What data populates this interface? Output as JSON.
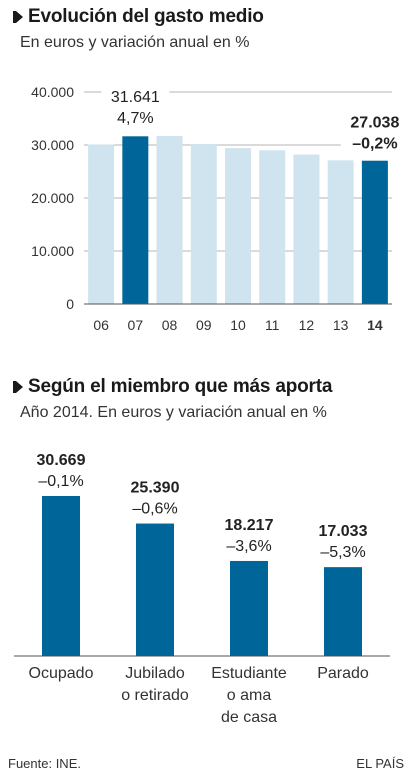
{
  "chart_data": [
    {
      "type": "bar",
      "title": "Evolución del gasto medio",
      "subtitle": "En euros y variación anual en %",
      "categories": [
        "06",
        "07",
        "08",
        "09",
        "10",
        "11",
        "12",
        "13",
        "14"
      ],
      "values": [
        30100,
        31641,
        31700,
        30200,
        29400,
        29000,
        28200,
        27100,
        27038
      ],
      "highlight": [
        false,
        true,
        false,
        false,
        false,
        false,
        false,
        false,
        true
      ],
      "yticks": [
        "0",
        "10.000",
        "20.000",
        "30.000",
        "40.000"
      ],
      "ylim": [
        0,
        40000
      ],
      "grid": true,
      "annotations": [
        {
          "category": "07",
          "value": "31.641",
          "change": "4,7%"
        },
        {
          "category": "14",
          "value": "27.038",
          "change": "–0,2%"
        }
      ],
      "colors": {
        "highlight": "#006699",
        "normal": "#cfe4ee"
      }
    },
    {
      "type": "bar",
      "title": "Según el miembro que más aporta",
      "subtitle": "Año 2014. En euros y variación anual en %",
      "categories": [
        "Ocupado",
        "Jubilado o retirado",
        "Estudiante o ama de casa",
        "Parado"
      ],
      "category_lines": [
        [
          "Ocupado"
        ],
        [
          "Jubilado",
          "o retirado"
        ],
        [
          "Estudiante",
          "o ama",
          "de casa"
        ],
        [
          "Parado"
        ]
      ],
      "values": [
        30669,
        25390,
        18217,
        17033
      ],
      "value_labels": [
        "30.669",
        "25.390",
        "18.217",
        "17.033"
      ],
      "change_labels": [
        "–0,1%",
        "–0,6%",
        "–3,6%",
        "–5,3%"
      ],
      "ylim": [
        0,
        30669
      ],
      "colors": {
        "bar": "#006699"
      }
    }
  ],
  "footer": {
    "source": "Fuente: INE.",
    "brand": "EL PAÍS"
  }
}
